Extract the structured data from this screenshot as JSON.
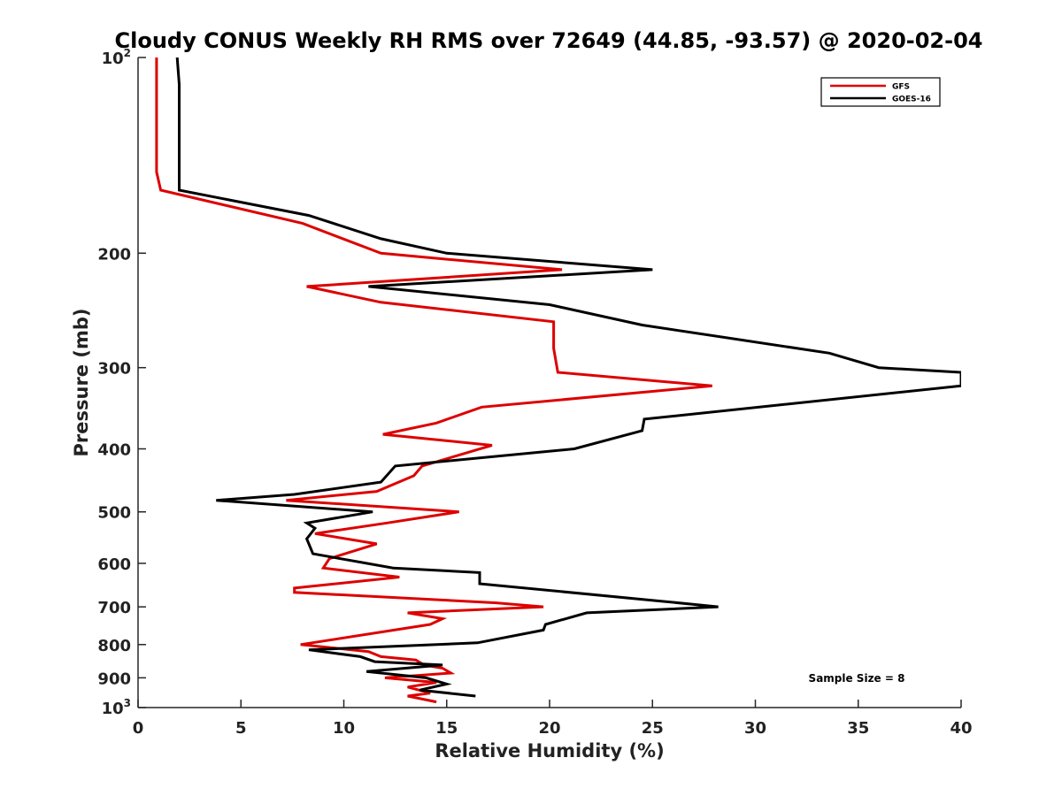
{
  "chart_data": {
    "type": "line",
    "title": "Cloudy CONUS Weekly RH RMS over 72649 (44.85, -93.57) @ 2020-02-04",
    "xlabel": "Relative Humidity (%)",
    "ylabel": "Pressure (mb)",
    "xlim": [
      0,
      40
    ],
    "ylim": [
      100,
      1000
    ],
    "y_scale": "log",
    "y_reversed": true,
    "x_ticks": [
      0,
      5,
      10,
      15,
      20,
      25,
      30,
      35,
      40
    ],
    "y_ticks": [
      {
        "value": 100,
        "base": "10",
        "exp": "2"
      },
      {
        "value": 200,
        "label": "200"
      },
      {
        "value": 300,
        "label": "300"
      },
      {
        "value": 400,
        "label": "400"
      },
      {
        "value": 500,
        "label": "500"
      },
      {
        "value": 600,
        "label": "600"
      },
      {
        "value": 700,
        "label": "700"
      },
      {
        "value": 800,
        "label": "800"
      },
      {
        "value": 900,
        "label": "900"
      },
      {
        "value": 1000,
        "base": "10",
        "exp": "3"
      }
    ],
    "grid": false,
    "legend_position": "top-right",
    "annotation": "Sample Size = 8",
    "series": [
      {
        "name": "GFS",
        "color": "#dd0000",
        "points": [
          [
            0.9,
            100
          ],
          [
            0.9,
            110
          ],
          [
            0.9,
            125
          ],
          [
            0.9,
            135
          ],
          [
            0.9,
            150
          ],
          [
            1.1,
            160
          ],
          [
            8.0,
            180
          ],
          [
            11.8,
            200
          ],
          [
            20.6,
            212
          ],
          [
            8.2,
            225
          ],
          [
            11.8,
            238
          ],
          [
            20.2,
            255
          ],
          [
            20.2,
            280
          ],
          [
            20.4,
            305
          ],
          [
            27.9,
            320
          ],
          [
            16.7,
            345
          ],
          [
            14.5,
            365
          ],
          [
            11.9,
            380
          ],
          [
            17.2,
            395
          ],
          [
            13.8,
            425
          ],
          [
            13.4,
            440
          ],
          [
            11.6,
            465
          ],
          [
            7.2,
            480
          ],
          [
            15.6,
            500
          ],
          [
            12.1,
            520
          ],
          [
            8.6,
            540
          ],
          [
            11.6,
            560
          ],
          [
            9.3,
            590
          ],
          [
            9.0,
            610
          ],
          [
            12.7,
            630
          ],
          [
            7.6,
            655
          ],
          [
            7.6,
            665
          ],
          [
            17.4,
            690
          ],
          [
            19.7,
            700
          ],
          [
            13.1,
            715
          ],
          [
            14.8,
            730
          ],
          [
            14.2,
            745
          ],
          [
            7.9,
            800
          ],
          [
            11.2,
            820
          ],
          [
            11.8,
            835
          ],
          [
            13.5,
            845
          ],
          [
            13.9,
            860
          ],
          [
            14.8,
            870
          ],
          [
            15.2,
            885
          ],
          [
            12.0,
            900
          ],
          [
            14.5,
            915
          ],
          [
            13.1,
            930
          ],
          [
            14.2,
            950
          ],
          [
            13.1,
            960
          ],
          [
            14.5,
            980
          ]
        ]
      },
      {
        "name": "GOES-16",
        "color": "#000000",
        "points": [
          [
            1.9,
            100
          ],
          [
            2.0,
            110
          ],
          [
            2.0,
            125
          ],
          [
            2.0,
            135
          ],
          [
            2.0,
            150
          ],
          [
            2.0,
            160
          ],
          [
            8.3,
            175
          ],
          [
            11.8,
            190
          ],
          [
            15.0,
            200
          ],
          [
            25.0,
            212
          ],
          [
            11.2,
            225
          ],
          [
            20.0,
            240
          ],
          [
            24.5,
            258
          ],
          [
            33.6,
            285
          ],
          [
            36.0,
            300
          ],
          [
            40.0,
            305
          ],
          [
            40.0,
            320
          ],
          [
            24.6,
            360
          ],
          [
            24.5,
            375
          ],
          [
            21.2,
            400
          ],
          [
            12.5,
            425
          ],
          [
            11.8,
            450
          ],
          [
            7.6,
            470
          ],
          [
            3.8,
            480
          ],
          [
            11.4,
            500
          ],
          [
            8.2,
            520
          ],
          [
            8.6,
            530
          ],
          [
            8.2,
            550
          ],
          [
            8.5,
            580
          ],
          [
            12.4,
            610
          ],
          [
            16.6,
            620
          ],
          [
            16.6,
            645
          ],
          [
            25.2,
            685
          ],
          [
            28.2,
            700
          ],
          [
            21.8,
            715
          ],
          [
            19.8,
            745
          ],
          [
            19.7,
            760
          ],
          [
            16.5,
            795
          ],
          [
            8.3,
            815
          ],
          [
            10.8,
            835
          ],
          [
            11.5,
            850
          ],
          [
            14.8,
            860
          ],
          [
            11.1,
            880
          ],
          [
            14.0,
            900
          ],
          [
            15.0,
            920
          ],
          [
            13.7,
            940
          ],
          [
            16.4,
            960
          ]
        ]
      }
    ]
  }
}
